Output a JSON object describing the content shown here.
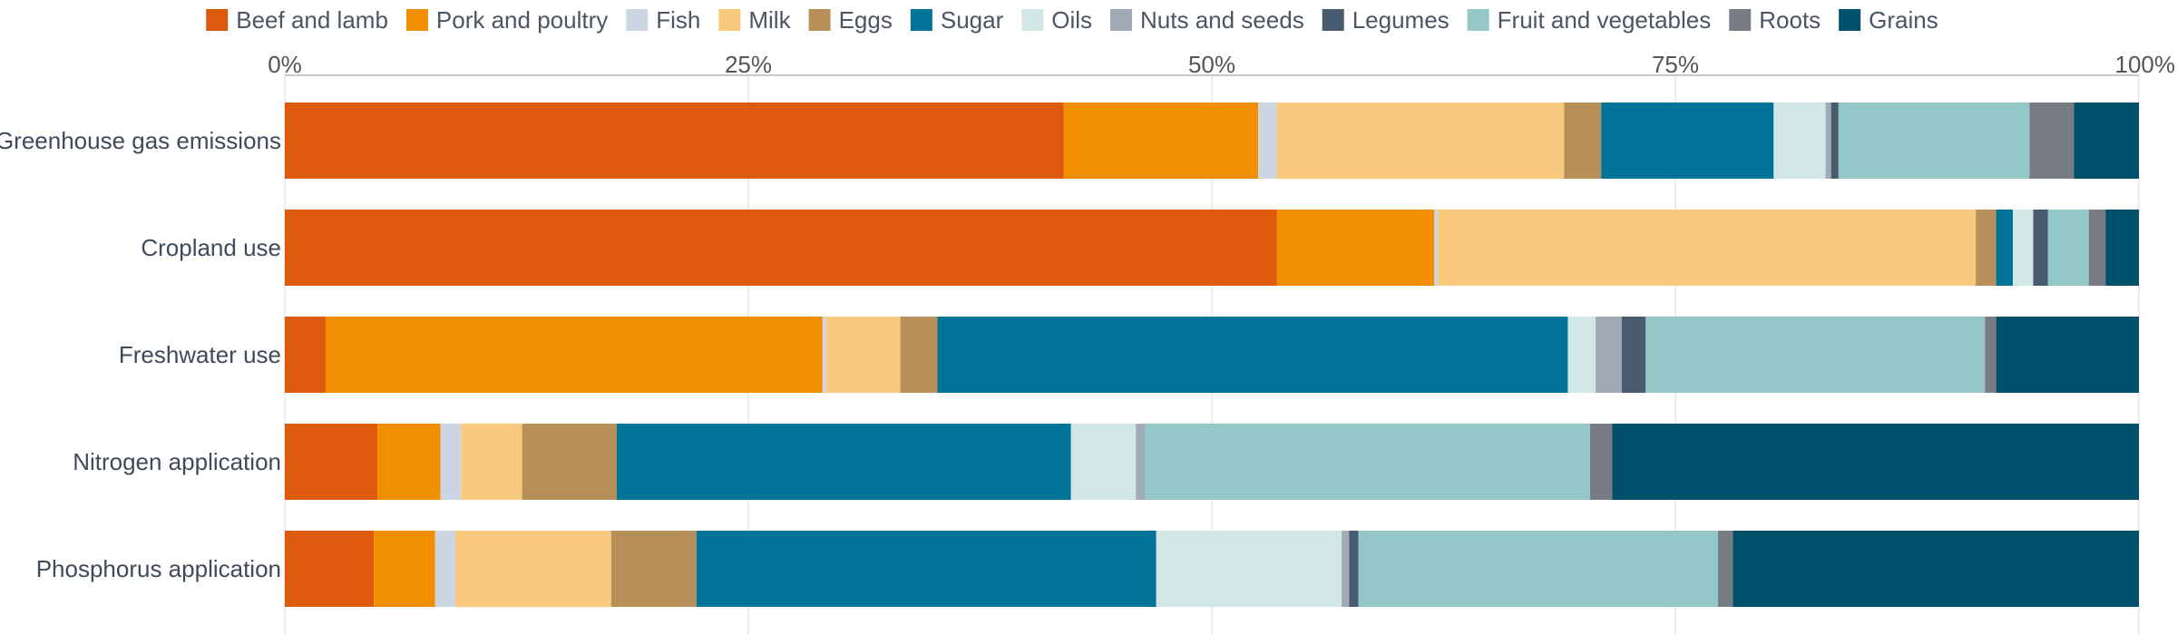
{
  "chart_data": {
    "type": "bar",
    "orientation": "horizontal",
    "stacked": true,
    "xlim": [
      0,
      100
    ],
    "x_ticks": [
      "0%",
      "25%",
      "50%",
      "75%",
      "100%"
    ],
    "x_tick_values": [
      0,
      25,
      50,
      75,
      100
    ],
    "x_axis_position": "top",
    "grid": true,
    "legend_position": "top",
    "categories": [
      "Greenhouse gas emissions",
      "Cropland use",
      "Freshwater use",
      "Nitrogen application",
      "Phosphorus application"
    ],
    "series": [
      {
        "name": "Beef and lamb",
        "color": "#dd5a0c",
        "values": [
          42.0,
          53.5,
          2.2,
          5.0,
          4.8
        ]
      },
      {
        "name": "Pork and poultry",
        "color": "#f18f00",
        "values": [
          10.5,
          8.5,
          26.8,
          3.4,
          3.3
        ]
      },
      {
        "name": "Fish",
        "color": "#ccd6e2",
        "values": [
          1.0,
          0.2,
          0.2,
          1.1,
          1.1
        ]
      },
      {
        "name": "Milk",
        "color": "#f9c97d",
        "values": [
          15.5,
          29.0,
          4.0,
          3.3,
          8.4
        ]
      },
      {
        "name": "Eggs",
        "color": "#b79059",
        "values": [
          2.0,
          1.1,
          2.0,
          5.1,
          4.6
        ]
      },
      {
        "name": "Sugar",
        "color": "#007498",
        "values": [
          9.3,
          0.9,
          34.0,
          24.5,
          24.8
        ]
      },
      {
        "name": "Oils",
        "color": "#d1e6e5",
        "values": [
          2.8,
          1.1,
          1.5,
          3.5,
          10.0
        ]
      },
      {
        "name": "Nuts and seeds",
        "color": "#a1abb7",
        "values": [
          0.3,
          0.0,
          1.4,
          0.5,
          0.4
        ]
      },
      {
        "name": "Legumes",
        "color": "#495c6f",
        "values": [
          0.4,
          0.8,
          1.3,
          0.0,
          0.5
        ]
      },
      {
        "name": "Fruit and vegetables",
        "color": "#94c8c8",
        "values": [
          10.3,
          2.2,
          18.3,
          24.0,
          19.4
        ]
      },
      {
        "name": "Roots",
        "color": "#767b84",
        "values": [
          2.4,
          0.9,
          0.6,
          1.2,
          0.8
        ]
      },
      {
        "name": "Grains",
        "color": "#00506c",
        "values": [
          3.5,
          1.8,
          7.9,
          28.6,
          22.2
        ]
      }
    ]
  }
}
